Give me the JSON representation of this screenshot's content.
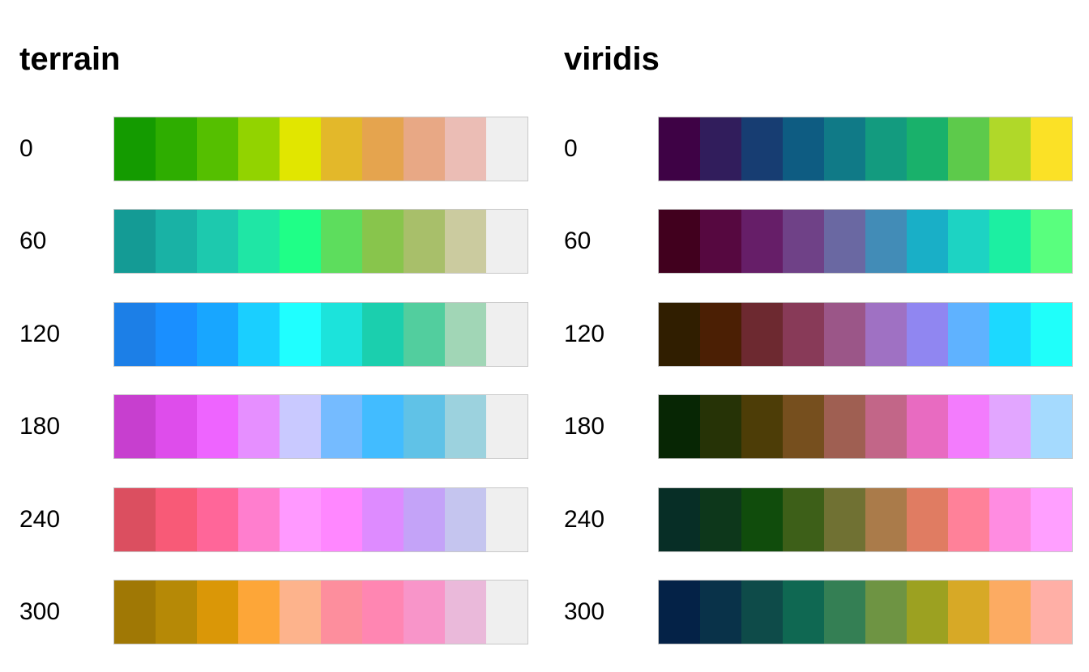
{
  "chart_data": [
    {
      "type": "heatmap",
      "title": "terrain",
      "rows": [
        {
          "label": "0",
          "colors": [
            "#149B00",
            "#2EAD00",
            "#55BF00",
            "#92D300",
            "#E1E600",
            "#E3B82A",
            "#E5A44E",
            "#E8A885",
            "#EBBDB5",
            "#EFEFEF"
          ]
        },
        {
          "label": "60",
          "colors": [
            "#149B95",
            "#19B2A5",
            "#1DC9AE",
            "#1FE6A5",
            "#1FFF87",
            "#5DDD5D",
            "#88C54C",
            "#A8BF6A",
            "#CBCB9F",
            "#EFEFEF"
          ]
        },
        {
          "label": "120",
          "colors": [
            "#1C7FE7",
            "#1A8FFF",
            "#18A6FF",
            "#1ACFFF",
            "#1FFFFF",
            "#1CE3DB",
            "#1BCFAE",
            "#52CE9E",
            "#A1D6B6",
            "#EFEFEF"
          ]
        },
        {
          "label": "180",
          "colors": [
            "#C73FCF",
            "#DE4DEB",
            "#EE64FF",
            "#E68FFF",
            "#C9C9FF",
            "#75BBFF",
            "#42BCFF",
            "#60C2E7",
            "#9CD2DE",
            "#EFEFEF"
          ]
        },
        {
          "label": "240",
          "colors": [
            "#DB4F60",
            "#F85A77",
            "#FF6699",
            "#FF7ECE",
            "#FF99FF",
            "#FF87FF",
            "#DE8BFF",
            "#C4A3F8",
            "#C5C5EF",
            "#EFEFEF"
          ]
        },
        {
          "label": "300",
          "colors": [
            "#A07805",
            "#B68906",
            "#DA9707",
            "#FDA638",
            "#FDB38C",
            "#FD8E9D",
            "#FF86B2",
            "#F895C9",
            "#EAB9DA",
            "#EFEFEF"
          ]
        }
      ]
    },
    {
      "type": "heatmap",
      "title": "viridis",
      "rows": [
        {
          "label": "0",
          "colors": [
            "#3E0245",
            "#311D5C",
            "#173D72",
            "#0E5C82",
            "#107A87",
            "#139B7F",
            "#19B16B",
            "#5DCA4B",
            "#B0D829",
            "#FBE126"
          ]
        },
        {
          "label": "60",
          "colors": [
            "#41001E",
            "#560840",
            "#661E68",
            "#6F4187",
            "#6A68A2",
            "#428CB7",
            "#19AFC7",
            "#1DD3C3",
            "#1CEFA2",
            "#59FF7E"
          ]
        },
        {
          "label": "120",
          "colors": [
            "#301E00",
            "#4B1F04",
            "#6D2930",
            "#883A58",
            "#9B5688",
            "#9F71C3",
            "#9086F1",
            "#5FB2FF",
            "#1CD9FF",
            "#1FFFFA"
          ]
        },
        {
          "label": "180",
          "colors": [
            "#072604",
            "#263306",
            "#4D3D07",
            "#764F1E",
            "#9F5F52",
            "#C26688",
            "#E86BC1",
            "#F37CFD",
            "#E2A6FF",
            "#A5DAFE"
          ]
        },
        {
          "label": "240",
          "colors": [
            "#072E26",
            "#0D371B",
            "#104C0C",
            "#3D5F18",
            "#707133",
            "#AA7B4A",
            "#E07C62",
            "#FF8199",
            "#FF8CE1",
            "#FF9FFF"
          ]
        },
        {
          "label": "300",
          "colors": [
            "#042247",
            "#093249",
            "#0E4B49",
            "#0F6852",
            "#347F54",
            "#6E9443",
            "#9CA121",
            "#D7A926",
            "#FCAB62",
            "#FFAFA6"
          ]
        }
      ]
    }
  ]
}
